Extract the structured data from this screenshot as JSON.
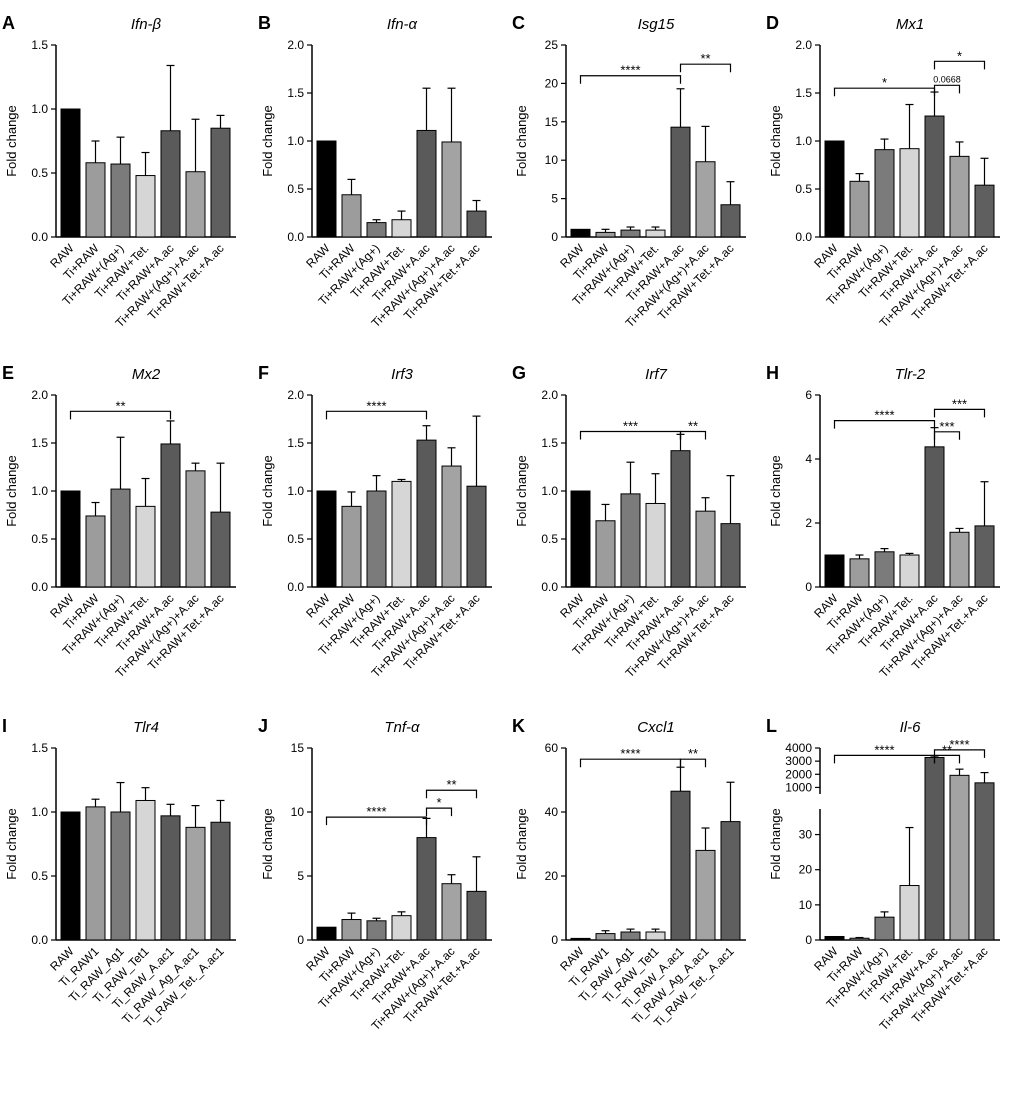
{
  "chart_data": [
    {
      "type": "bar",
      "letter": "A",
      "title": "Ifn-β",
      "ylabel": "Fold change",
      "ylim": [
        0,
        1.5
      ],
      "yticks": [
        "0.0",
        "0.5",
        "1.0",
        "1.5"
      ],
      "categories": [
        "RAW",
        "Ti+RAW",
        "Ti+RAW+(Ag+)",
        "Ti+RAW+Tet.",
        "Ti+RAW+A.ac",
        "Ti+RAW+(Ag+)+A.ac",
        "Ti+RAW+Tet.+A.ac"
      ],
      "values": [
        1.0,
        0.58,
        0.57,
        0.48,
        0.83,
        0.51,
        0.85
      ],
      "errors": [
        0,
        0.17,
        0.21,
        0.18,
        0.51,
        0.41,
        0.1
      ],
      "sig": []
    },
    {
      "type": "bar",
      "letter": "B",
      "title": "Ifn-α",
      "ylabel": "Fold change",
      "ylim": [
        0,
        2.0
      ],
      "yticks": [
        "0.0",
        "0.5",
        "1.0",
        "1.5",
        "2.0"
      ],
      "categories": [
        "RAW",
        "Ti+RAW",
        "Ti+RAW+(Ag+)",
        "Ti+RAW+Tet.",
        "Ti+RAW+A.ac",
        "Ti+RAW+(Ag+)+A.ac",
        "Ti+RAW+Tet.+A.ac"
      ],
      "values": [
        1.0,
        0.44,
        0.15,
        0.18,
        1.11,
        0.99,
        0.27
      ],
      "errors": [
        0,
        0.16,
        0.03,
        0.09,
        0.44,
        0.56,
        0.11
      ],
      "sig": []
    },
    {
      "type": "bar",
      "letter": "C",
      "title": "Isg15",
      "ylabel": "Fold change",
      "ylim": [
        0,
        25
      ],
      "yticks": [
        "0",
        "5",
        "10",
        "15",
        "20",
        "25"
      ],
      "categories": [
        "RAW",
        "Ti+RAW",
        "Ti+RAW+(Ag+)",
        "Ti+RAW+Tet.",
        "Ti+RAW+A.ac",
        "Ti+RAW+(Ag+)+A.ac",
        "Ti+RAW+Tet.+A.ac"
      ],
      "values": [
        1.0,
        0.6,
        0.9,
        0.9,
        14.3,
        9.8,
        4.2
      ],
      "errors": [
        0,
        0.4,
        0.4,
        0.4,
        5.0,
        4.6,
        3.0
      ],
      "sig": [
        {
          "from": 0,
          "to": 4,
          "y": 21,
          "label": "****"
        },
        {
          "from": 4,
          "to": 6,
          "y": 22.5,
          "label": "**"
        }
      ]
    },
    {
      "type": "bar",
      "letter": "D",
      "title": "Mx1",
      "ylabel": "Fold change",
      "ylim": [
        0,
        2.0
      ],
      "yticks": [
        "0.0",
        "0.5",
        "1.0",
        "1.5",
        "2.0"
      ],
      "categories": [
        "RAW",
        "Ti+RAW",
        "Ti+RAW+(Ag+)",
        "Ti+RAW+Tet.",
        "Ti+RAW+A.ac",
        "Ti+RAW+(Ag+)+A.ac",
        "Ti+RAW+Tet.+A.ac"
      ],
      "values": [
        1.0,
        0.58,
        0.91,
        0.92,
        1.26,
        0.84,
        0.54
      ],
      "errors": [
        0,
        0.08,
        0.11,
        0.46,
        0.25,
        0.15,
        0.28
      ],
      "sig": [
        {
          "from": 0,
          "to": 4,
          "y": 1.55,
          "label": "*"
        },
        {
          "from": 4,
          "to": 5,
          "y": 1.58,
          "label": "0.0668"
        },
        {
          "from": 4,
          "to": 6,
          "y": 1.83,
          "label": "*"
        }
      ]
    },
    {
      "type": "bar",
      "letter": "E",
      "title": "Mx2",
      "ylabel": "Fold change",
      "ylim": [
        0,
        2.0
      ],
      "yticks": [
        "0.0",
        "0.5",
        "1.0",
        "1.5",
        "2.0"
      ],
      "categories": [
        "RAW",
        "Ti+RAW",
        "Ti+RAW+(Ag+)",
        "Ti+RAW+Tet.",
        "Ti+RAW+A.ac",
        "Ti+RAW+(Ag+)+A.ac",
        "Ti+RAW+Tet.+A.ac"
      ],
      "values": [
        1.0,
        0.74,
        1.02,
        0.84,
        1.49,
        1.21,
        0.78
      ],
      "errors": [
        0,
        0.14,
        0.54,
        0.29,
        0.24,
        0.08,
        0.51
      ],
      "sig": [
        {
          "from": 0,
          "to": 4,
          "y": 1.83,
          "label": "**"
        }
      ]
    },
    {
      "type": "bar",
      "letter": "F",
      "title": "Irf3",
      "ylabel": "Fold change",
      "ylim": [
        0,
        2.0
      ],
      "yticks": [
        "0.0",
        "0.5",
        "1.0",
        "1.5",
        "2.0"
      ],
      "categories": [
        "RAW",
        "Ti+RAW",
        "Ti+RAW+(Ag+)",
        "Ti+RAW+Tet.",
        "Ti+RAW+A.ac",
        "Ti+RAW+(Ag+)+A.ac",
        "Ti+RAW+Tet.+A.ac"
      ],
      "values": [
        1.0,
        0.84,
        1.0,
        1.1,
        1.53,
        1.26,
        1.05
      ],
      "errors": [
        0,
        0.15,
        0.16,
        0.02,
        0.15,
        0.19,
        0.73
      ],
      "sig": [
        {
          "from": 0,
          "to": 4,
          "y": 1.83,
          "label": "****"
        }
      ]
    },
    {
      "type": "bar",
      "letter": "G",
      "title": "Irf7",
      "ylabel": "Fold change",
      "ylim": [
        0,
        2.0
      ],
      "yticks": [
        "0.0",
        "0.5",
        "1.0",
        "1.5",
        "2.0"
      ],
      "categories": [
        "RAW",
        "Ti+RAW",
        "Ti+RAW+(Ag+)",
        "Ti+RAW+Tet.",
        "Ti+RAW+A.ac",
        "Ti+RAW+(Ag+)+A.ac",
        "Ti+RAW+Tet.+A.ac"
      ],
      "values": [
        1.0,
        0.69,
        0.97,
        0.87,
        1.42,
        0.79,
        0.66
      ],
      "errors": [
        0,
        0.17,
        0.33,
        0.31,
        0.17,
        0.14,
        0.5
      ],
      "sig": [
        {
          "from": 0,
          "to": 4,
          "y": 1.62,
          "label": "***"
        },
        {
          "from": 4,
          "to": 5,
          "y": 1.62,
          "label": "**"
        }
      ]
    },
    {
      "type": "bar",
      "letter": "H",
      "title": "Tlr-2",
      "ylabel": "Fold change",
      "ylim": [
        0,
        6
      ],
      "yticks": [
        "0",
        "2",
        "4",
        "6"
      ],
      "categories": [
        "RAW",
        "Ti+RAW",
        "Ti+RAW+(Ag+)",
        "Ti+RAW+Tet.",
        "Ti+RAW+A.ac",
        "Ti+RAW+(Ag+)+A.ac",
        "Ti+RAW+Tet.+A.ac"
      ],
      "values": [
        1.0,
        0.88,
        1.1,
        1.0,
        4.38,
        1.71,
        1.91
      ],
      "errors": [
        0,
        0.12,
        0.1,
        0.05,
        0.6,
        0.12,
        1.38
      ],
      "sig": [
        {
          "from": 0,
          "to": 4,
          "y": 5.2,
          "label": "****"
        },
        {
          "from": 4,
          "to": 5,
          "y": 4.85,
          "label": "***"
        },
        {
          "from": 4,
          "to": 6,
          "y": 5.55,
          "label": "***"
        }
      ]
    },
    {
      "type": "bar",
      "letter": "I",
      "title": "Tlr4",
      "ylabel": "Fold change",
      "ylim": [
        0,
        1.5
      ],
      "yticks": [
        "0.0",
        "0.5",
        "1.0",
        "1.5"
      ],
      "categories": [
        "RAW",
        "Ti_RAW1",
        "Ti_RAW_Ag1",
        "Ti_RAW_Tet1",
        "Ti_RAW_A.ac1",
        "Ti_RAW_Ag_A.ac1",
        "Ti_RAW_Tet._A.ac1"
      ],
      "values": [
        1.0,
        1.04,
        1.0,
        1.09,
        0.97,
        0.88,
        0.92
      ],
      "errors": [
        0,
        0.06,
        0.23,
        0.1,
        0.09,
        0.17,
        0.17
      ],
      "sig": []
    },
    {
      "type": "bar",
      "letter": "J",
      "title": "Tnf-α",
      "ylabel": "Fold change",
      "ylim": [
        0,
        15
      ],
      "yticks": [
        "0",
        "5",
        "10",
        "15"
      ],
      "categories": [
        "RAW",
        "Ti+RAW",
        "Ti+RAW+(Ag+)",
        "Ti+RAW+Tet.",
        "Ti+RAW+A.ac",
        "Ti+RAW+(Ag+)+A.ac",
        "Ti+RAW+Tet.+A.ac"
      ],
      "values": [
        1.0,
        1.6,
        1.5,
        1.9,
        8.0,
        4.4,
        3.8
      ],
      "errors": [
        0,
        0.5,
        0.2,
        0.3,
        1.5,
        0.7,
        2.7
      ],
      "sig": [
        {
          "from": 0,
          "to": 4,
          "y": 9.6,
          "label": "****"
        },
        {
          "from": 4,
          "to": 5,
          "y": 10.3,
          "label": "*"
        },
        {
          "from": 4,
          "to": 6,
          "y": 11.7,
          "label": "**"
        }
      ]
    },
    {
      "type": "bar",
      "letter": "K",
      "title": "Cxcl1",
      "ylabel": "Fold change",
      "ylim": [
        0,
        60
      ],
      "yticks": [
        "0",
        "20",
        "40",
        "60"
      ],
      "categories": [
        "RAW",
        "Ti_RAW1",
        "Ti_RAW_Ag1",
        "Ti_RAW_Tet1",
        "Ti_RAW_A.ac1",
        "Ti_RAW_Ag_A.ac1",
        "Ti_RAW_Tet._A.ac1"
      ],
      "values": [
        0.5,
        2.0,
        2.5,
        2.5,
        46.5,
        28.0,
        37.0
      ],
      "errors": [
        0,
        0.9,
        0.9,
        0.9,
        7.5,
        7.0,
        12.3
      ],
      "sig": [
        {
          "from": 0,
          "to": 4,
          "y": 56.5,
          "label": "****"
        },
        {
          "from": 4,
          "to": 5,
          "y": 56.5,
          "label": "**"
        }
      ]
    },
    {
      "type": "bar",
      "letter": "L",
      "title": "Il-6",
      "ylabel": "Fold change",
      "scale": "broken",
      "yticks": [
        "0",
        "10",
        "20",
        "30",
        "1000",
        "2000",
        "3000",
        "4000"
      ],
      "categories": [
        "RAW",
        "Ti+RAW",
        "Ti+RAW+(Ag+)",
        "Ti+RAW+Tet.",
        "Ti+RAW+A.ac",
        "Ti+RAW+(Ag+)+A.ac",
        "Ti+RAW+Tet.+A.ac"
      ],
      "values": [
        1.0,
        0.5,
        6.5,
        15.5,
        3280,
        1920,
        1350
      ],
      "errors": [
        0,
        0.2,
        1.5,
        16.5,
        40,
        470,
        780
      ],
      "sig": [
        {
          "from": 0,
          "to": 4,
          "y": 3440,
          "label": "****"
        },
        {
          "from": 4,
          "to": 5,
          "y": 3440,
          "label": "**"
        },
        {
          "from": 4,
          "to": 6,
          "y": 3860,
          "label": "****"
        }
      ]
    }
  ],
  "colors": [
    "#000000",
    "#9c9c9c",
    "#7b7b7b",
    "#d6d6d6",
    "#5a5a5a",
    "#a3a3a3",
    "#5f5f5f"
  ]
}
